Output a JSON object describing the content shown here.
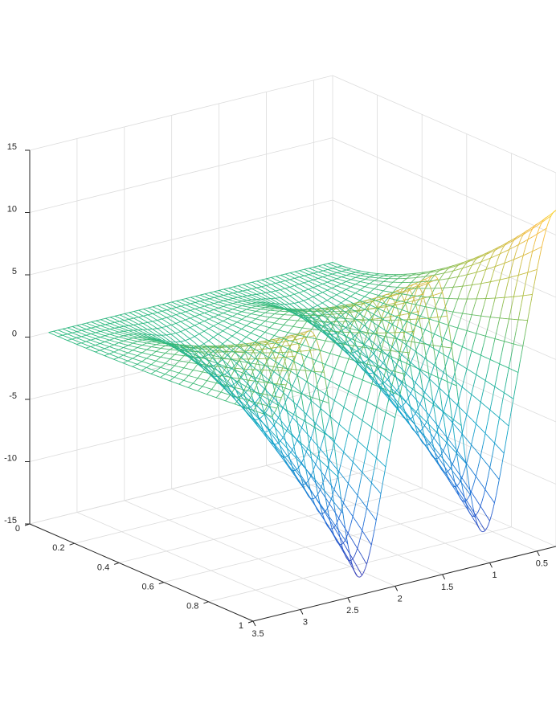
{
  "chart_data": {
    "type": "surface-mesh",
    "colormap": "parula",
    "colormap_stops": [
      "#3e26a8",
      "#1e6bd8",
      "#0ea5c9",
      "#2ab87e",
      "#a9be42",
      "#f8ba3d",
      "#f9fb15"
    ],
    "x_axis": {
      "ticks": [
        0.5,
        1,
        1.5,
        2,
        2.5,
        3,
        3.5
      ],
      "tick_labels": [
        "0.5",
        "1",
        "1.5",
        "2",
        "2.5",
        "3",
        "3.5"
      ],
      "lim": [
        0.3,
        3.5
      ]
    },
    "y_axis": {
      "ticks": [
        0,
        0.2,
        0.4,
        0.6,
        0.8,
        1
      ],
      "tick_labels": [
        "0",
        "0.2",
        "0.4",
        "0.6",
        "0.8",
        "1"
      ],
      "lim": [
        0,
        1
      ]
    },
    "z_axis": {
      "ticks": [
        -15,
        -10,
        -5,
        0,
        5,
        10,
        15
      ],
      "tick_labels": [
        "-15",
        "-10",
        "-5",
        "0",
        "5",
        "10",
        "15"
      ],
      "lim": [
        -15,
        15
      ]
    },
    "grid": true,
    "surface_extent": {
      "x": [
        0.3,
        3.3
      ],
      "y": [
        0,
        1
      ]
    },
    "peaks": [
      {
        "x": 0.3,
        "z": 12.0
      },
      {
        "x": 1.1,
        "z": -13.5
      },
      {
        "x": 1.55,
        "z": 10.5
      },
      {
        "x": 2.4,
        "z": -14.5
      },
      {
        "x": 2.85,
        "z": 8.5
      }
    ]
  }
}
